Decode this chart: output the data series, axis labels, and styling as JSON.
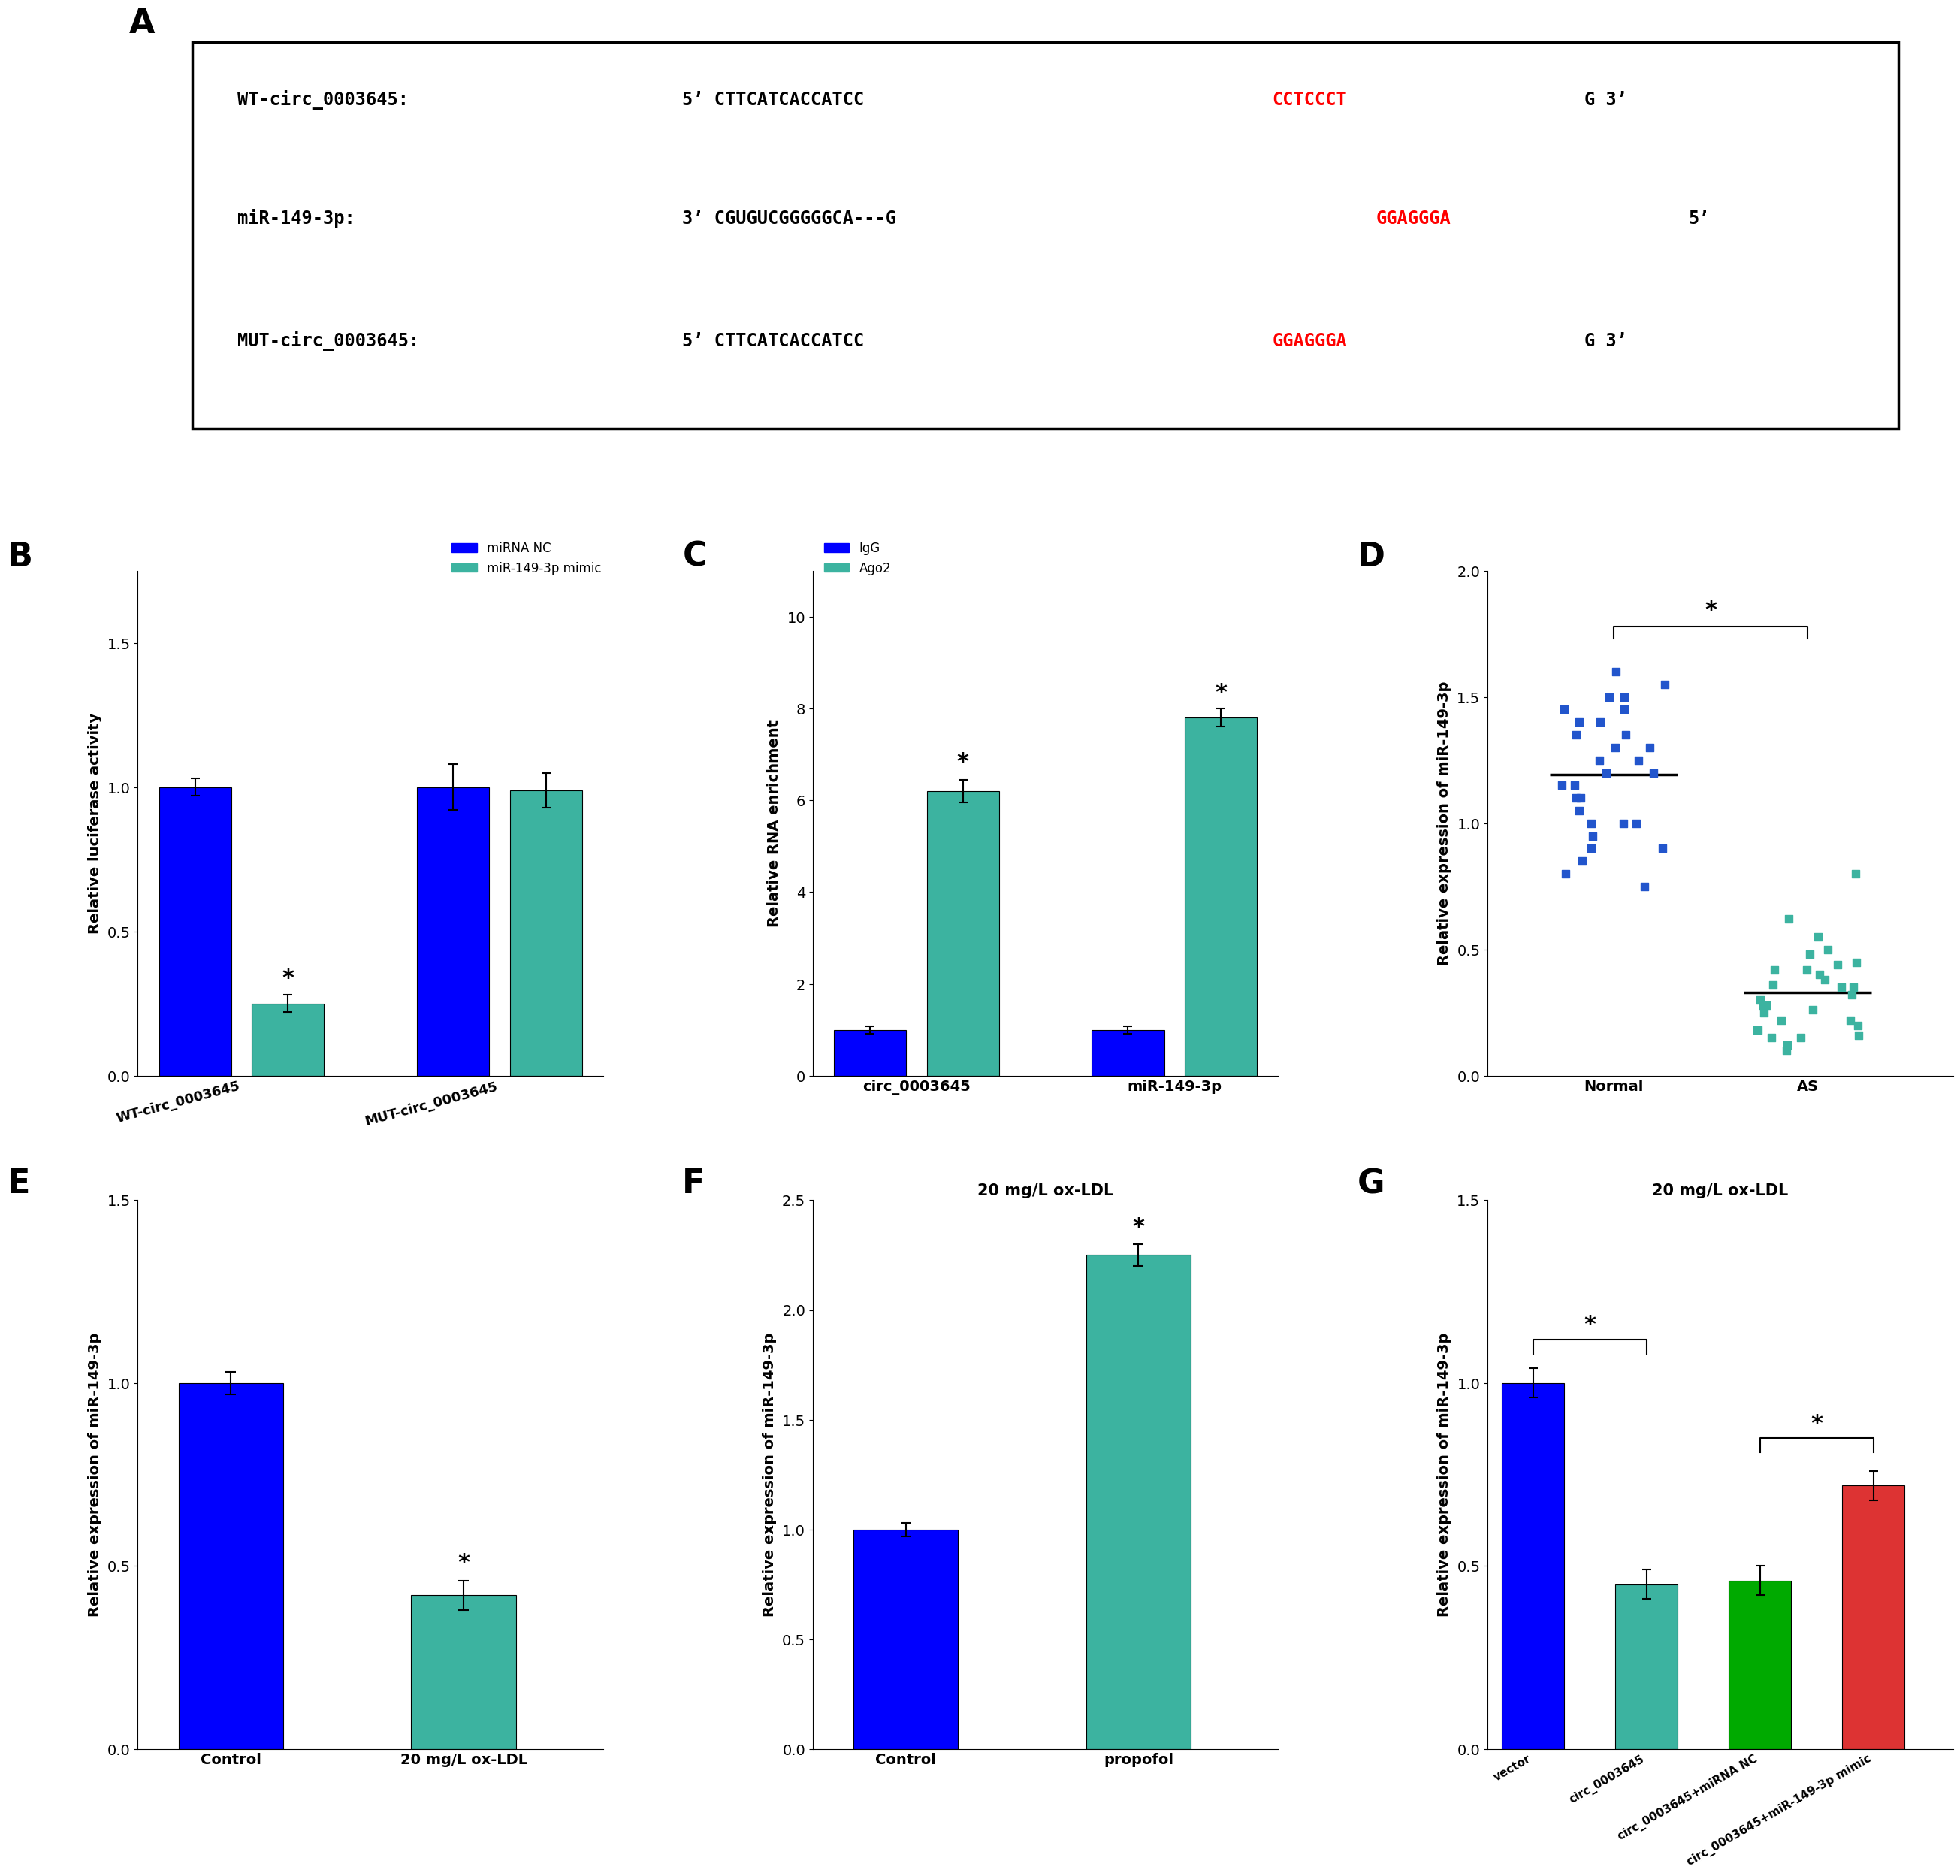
{
  "panel_B": {
    "ylabel": "Relative luciferase activity",
    "ylim": [
      0,
      1.75
    ],
    "yticks": [
      0.0,
      0.5,
      1.0,
      1.5
    ],
    "groups": [
      "WT-circ_0003645",
      "MUT-circ_0003645"
    ],
    "bars": [
      {
        "label": "miRNA NC",
        "values": [
          1.0,
          1.0
        ],
        "color": "#0000FF",
        "error": [
          0.03,
          0.08
        ]
      },
      {
        "label": "miR-149-3p mimic",
        "values": [
          0.25,
          0.99
        ],
        "color": "#3cb3a0",
        "error": [
          0.03,
          0.06
        ]
      }
    ],
    "legend_labels": [
      "miRNA NC",
      "miR-149-3p mimic"
    ]
  },
  "panel_C": {
    "ylabel": "Relative RNA enrichment",
    "ylim": [
      0,
      11
    ],
    "yticks": [
      0,
      2,
      4,
      6,
      8,
      10
    ],
    "groups": [
      "circ_0003645",
      "miR-149-3p"
    ],
    "bars": [
      {
        "label": "IgG",
        "values": [
          1.0,
          1.0
        ],
        "color": "#0000FF",
        "error": [
          0.08,
          0.08
        ]
      },
      {
        "label": "Ago2",
        "values": [
          6.2,
          7.8
        ],
        "color": "#3cb3a0",
        "error": [
          0.25,
          0.2
        ]
      }
    ],
    "legend_labels": [
      "IgG",
      "Ago2"
    ]
  },
  "panel_D": {
    "ylabel": "Relative expression of miR-149-3p",
    "ylim": [
      0,
      2.0
    ],
    "yticks": [
      0.0,
      0.5,
      1.0,
      1.5,
      2.0
    ],
    "groups": [
      "Normal",
      "AS"
    ],
    "normal_points_y": [
      1.4,
      0.9,
      1.25,
      1.5,
      1.1,
      1.35,
      0.8,
      1.2,
      1.45,
      1.0,
      1.15,
      1.55,
      1.3,
      0.85,
      1.4,
      1.05,
      0.95,
      1.6,
      1.2,
      1.0,
      1.35,
      1.15,
      0.9,
      1.25,
      1.5,
      0.75,
      1.1,
      1.3,
      1.0,
      1.45
    ],
    "as_points_y": [
      0.4,
      0.15,
      0.3,
      0.45,
      0.2,
      0.35,
      0.1,
      0.25,
      0.5,
      0.15,
      0.28,
      0.42,
      0.18,
      0.32,
      0.22,
      0.38,
      0.12,
      0.48,
      0.26,
      0.36,
      0.16,
      0.44,
      0.8,
      0.22,
      0.55,
      0.35,
      0.28,
      0.42,
      0.18,
      0.62
    ],
    "point_color_normal": "#2255cc",
    "point_color_as": "#3cb3a0"
  },
  "panel_E": {
    "ylabel": "Relative expression of miR-149-3p",
    "ylim": [
      0,
      1.5
    ],
    "yticks": [
      0.0,
      0.5,
      1.0,
      1.5
    ],
    "groups": [
      "Control",
      "20 mg/L ox-LDL"
    ],
    "bars": [
      {
        "value": 1.0,
        "color": "#0000FF",
        "error": 0.03
      },
      {
        "value": 0.42,
        "color": "#3cb3a0",
        "error": 0.04
      }
    ]
  },
  "panel_F": {
    "title": "20 mg/L ox-LDL",
    "ylabel": "Relative expression of miR-149-3p",
    "ylim": [
      0,
      2.5
    ],
    "yticks": [
      0.0,
      0.5,
      1.0,
      1.5,
      2.0,
      2.5
    ],
    "groups": [
      "Control",
      "propofol"
    ],
    "bars": [
      {
        "value": 1.0,
        "color": "#0000FF",
        "error": 0.03
      },
      {
        "value": 2.25,
        "color": "#3cb3a0",
        "error": 0.05
      }
    ]
  },
  "panel_G": {
    "title": "20 mg/L ox-LDL",
    "ylabel": "Relative expression of miR-149-3p",
    "ylim": [
      0,
      1.5
    ],
    "yticks": [
      0.0,
      0.5,
      1.0,
      1.5
    ],
    "groups": [
      "vector",
      "circ_0003645",
      "circ_0003645+miRNA NC",
      "circ_0003645+miR-149-3p mimic"
    ],
    "bars": [
      {
        "value": 1.0,
        "color": "#0000FF",
        "error": 0.04
      },
      {
        "value": 0.45,
        "color": "#3cb3a0",
        "error": 0.04
      },
      {
        "value": 0.46,
        "color": "#00aa00",
        "error": 0.04
      },
      {
        "value": 0.72,
        "color": "#dd3333",
        "error": 0.04
      }
    ]
  },
  "panel_A_lines": [
    {
      "parts": [
        {
          "text": "WT-circ_0003645:",
          "color": "black"
        },
        {
          "text": "  5’ CTTCATCACCATCC",
          "color": "black"
        },
        {
          "text": "CCTCCCT",
          "color": "red"
        },
        {
          "text": "G 3’",
          "color": "black"
        }
      ]
    },
    {
      "parts": [
        {
          "text": "miR-149-3p:",
          "color": "black"
        },
        {
          "text": "      3’ CGUGUCGGGGGCA---G",
          "color": "black"
        },
        {
          "text": "GGAGGGA",
          "color": "red"
        },
        {
          "text": " 5’",
          "color": "black"
        }
      ]
    },
    {
      "parts": [
        {
          "text": "MUT-circ_0003645:",
          "color": "black"
        },
        {
          "text": " 5’ CTTCATCACCATCC",
          "color": "black"
        },
        {
          "text": "GGAGGGA",
          "color": "red"
        },
        {
          "text": "G 3’",
          "color": "black"
        }
      ]
    }
  ],
  "colors": {
    "blue": "#0000FF",
    "teal": "#3cb3a0",
    "green": "#00aa00",
    "red": "#dd3333"
  }
}
